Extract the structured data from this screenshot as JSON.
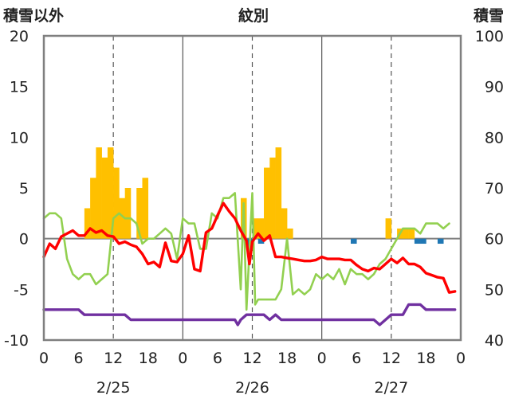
{
  "chart_data": {
    "type": "bar+line",
    "title": "紋別",
    "left_axis_label": "積雪以外",
    "right_axis_label": "積雪",
    "left_ylim": [
      -10,
      20
    ],
    "left_ticks": [
      "20",
      "15",
      "10",
      "5",
      "0",
      "-5",
      "-10"
    ],
    "right_ylim": [
      40,
      100
    ],
    "right_ticks": [
      "100",
      "90",
      "80",
      "70",
      "60",
      "50",
      "40"
    ],
    "x_range_hours": [
      0,
      72
    ],
    "x_tick_labels": [
      "0",
      "6",
      "12",
      "18",
      "0",
      "6",
      "12",
      "18",
      "0",
      "6",
      "12",
      "18",
      "0"
    ],
    "date_labels": [
      {
        "label": "2/25"
      },
      {
        "label": "2/26"
      },
      {
        "label": "2/27"
      }
    ],
    "grid": "dashed vertical lines at 12:00, solid vertical lines at 0:00",
    "colors": {
      "precip": "#ffc000",
      "snowdepth_change": "#1f77b4",
      "temperature": "#ff0000",
      "snow_depth": "#92d050",
      "pressure": "#7030a0",
      "axis": "#7f7f7f",
      "grid": "#555555"
    },
    "series": [
      {
        "key": "precip",
        "axis": "left",
        "values": [
          0,
          0,
          0,
          0,
          0,
          0,
          0,
          3,
          6,
          9,
          8,
          9,
          7,
          4,
          5,
          0,
          5,
          6,
          0,
          0,
          0,
          0,
          0,
          0,
          0,
          0,
          0,
          0,
          0,
          0,
          0,
          0,
          0,
          0,
          4,
          0,
          2,
          2,
          7,
          8,
          9,
          3,
          1,
          0,
          0,
          0,
          0,
          0,
          0,
          0,
          0,
          0,
          0,
          0,
          0,
          0,
          0,
          0,
          0,
          2,
          0,
          1,
          1,
          1,
          0,
          0,
          0,
          0,
          0,
          0,
          0,
          0
        ]
      },
      {
        "key": "snowdepth_change",
        "axis": "left",
        "values": [
          0,
          0,
          0,
          0,
          0,
          0,
          0,
          0,
          0,
          0,
          0,
          0,
          0,
          0,
          0,
          0,
          0,
          0,
          0,
          0,
          0,
          0,
          0,
          0,
          0,
          0,
          0,
          0,
          0,
          0,
          0,
          0,
          0,
          0,
          0,
          -1,
          0,
          -0.5,
          0,
          0,
          0,
          0,
          0,
          0,
          0,
          0,
          0,
          0,
          0,
          0,
          0,
          0,
          0,
          -0.5,
          0,
          0,
          0,
          0,
          0,
          0,
          0,
          0,
          0,
          0,
          -0.5,
          -0.5,
          0,
          0,
          -0.5,
          0,
          0,
          0
        ]
      },
      {
        "key": "temperature",
        "axis": "left",
        "x": [
          0,
          1,
          2,
          3,
          4,
          5,
          6,
          7,
          8,
          9,
          10,
          11,
          12,
          13,
          14,
          15,
          16,
          17,
          18,
          19,
          20,
          21,
          22,
          23,
          24,
          25,
          26,
          27,
          28,
          29,
          30,
          31,
          32,
          33,
          34,
          35,
          35.5,
          36,
          37,
          38,
          39,
          40,
          41,
          42,
          43,
          44,
          45,
          46,
          47,
          48,
          49,
          50,
          51,
          52,
          53,
          54,
          55,
          56,
          57,
          58,
          59,
          60,
          61,
          62,
          63,
          64,
          65,
          66,
          67,
          68,
          69,
          70,
          71
        ],
        "values": [
          -1.8,
          -0.5,
          -1.0,
          0.2,
          0.5,
          0.8,
          0.3,
          0.3,
          1.0,
          0.6,
          0.8,
          0.3,
          0.2,
          -0.5,
          -0.3,
          -0.6,
          -0.8,
          -1.5,
          -2.5,
          -2.3,
          -2.8,
          -0.4,
          -2.2,
          -2.3,
          -1.5,
          0.3,
          -3.0,
          -3.2,
          0.6,
          1.0,
          2.3,
          3.5,
          2.7,
          2.0,
          0.8,
          -0.2,
          -2.5,
          -0.3,
          0.5,
          -0.2,
          0.3,
          -1.8,
          -1.8,
          -1.9,
          -2.0,
          -2.1,
          -2.2,
          -2.2,
          -2.1,
          -1.8,
          -2.0,
          -2.0,
          -2.0,
          -2.1,
          -2.1,
          -2.6,
          -3.0,
          -3.2,
          -2.9,
          -3.0,
          -2.5,
          -2.0,
          -2.4,
          -1.9,
          -2.5,
          -2.5,
          -2.8,
          -3.4,
          -3.6,
          -3.8,
          -3.9,
          -5.3,
          -5.2
        ]
      },
      {
        "key": "snow_depth",
        "axis": "right",
        "x": [
          0,
          1,
          2,
          3,
          4,
          5,
          6,
          7,
          8,
          9,
          10,
          11,
          12,
          13,
          14,
          15,
          16,
          17,
          18,
          19,
          20,
          21,
          22,
          23,
          24,
          25,
          26,
          27,
          28,
          29,
          30,
          31,
          32,
          33,
          34,
          34.5,
          35,
          36,
          36.5,
          37,
          38,
          39,
          40,
          41,
          42,
          43,
          44,
          45,
          46,
          47,
          48,
          49,
          50,
          51,
          52,
          53,
          54,
          55,
          56,
          57,
          58,
          59,
          60,
          61,
          62,
          63,
          64,
          65,
          66,
          67,
          68,
          69,
          70
        ],
        "values": [
          64,
          65,
          65,
          64,
          56,
          53,
          52,
          53,
          53,
          51,
          52,
          53,
          64,
          65,
          64,
          64,
          63,
          59,
          60,
          60,
          61,
          62,
          61,
          56,
          64,
          63,
          63,
          58,
          58,
          65,
          64,
          68,
          68,
          69,
          50,
          67,
          46,
          69,
          47,
          48,
          48,
          48,
          48,
          50,
          60,
          49,
          50,
          49,
          50,
          53,
          52,
          53,
          52,
          54,
          51,
          54,
          53,
          53,
          52,
          53,
          55,
          56,
          58,
          60,
          62,
          62,
          62,
          61,
          63,
          63,
          63,
          62,
          63
        ]
      },
      {
        "key": "pressure",
        "axis": "left",
        "x": [
          0,
          1,
          2,
          3,
          4,
          5,
          6,
          7,
          8,
          9,
          10,
          11,
          12,
          13,
          14,
          15,
          16,
          17,
          18,
          19,
          20,
          21,
          22,
          23,
          24,
          25,
          26,
          27,
          28,
          29,
          30,
          31,
          32,
          33,
          33.5,
          34,
          35,
          36,
          37,
          38,
          39,
          40,
          41,
          42,
          43,
          44,
          45,
          46,
          47,
          48,
          49,
          50,
          51,
          52,
          53,
          54,
          55,
          56,
          57,
          58,
          59,
          60,
          61,
          62,
          63,
          64,
          65,
          66,
          67,
          68,
          69,
          70,
          71
        ],
        "values": [
          -7.0,
          -7.0,
          -7.0,
          -7.0,
          -7.0,
          -7.0,
          -7.0,
          -7.5,
          -7.5,
          -7.5,
          -7.5,
          -7.5,
          -7.5,
          -7.5,
          -7.5,
          -8.0,
          -8.0,
          -8.0,
          -8.0,
          -8.0,
          -8.0,
          -8.0,
          -8.0,
          -8.0,
          -8.0,
          -8.0,
          -8.0,
          -8.0,
          -8.0,
          -8.0,
          -8.0,
          -8.0,
          -8.0,
          -8.0,
          -8.5,
          -8.0,
          -7.5,
          -7.5,
          -7.5,
          -7.5,
          -8.0,
          -7.5,
          -8.0,
          -8.0,
          -8.0,
          -8.0,
          -8.0,
          -8.0,
          -8.0,
          -8.0,
          -8.0,
          -8.0,
          -8.0,
          -8.0,
          -8.0,
          -8.0,
          -8.0,
          -8.0,
          -8.0,
          -8.5,
          -8.0,
          -7.5,
          -7.5,
          -7.5,
          -6.5,
          -6.5,
          -6.5,
          -7.0,
          -7.0,
          -7.0,
          -7.0,
          -7.0,
          -7.0
        ]
      }
    ]
  }
}
